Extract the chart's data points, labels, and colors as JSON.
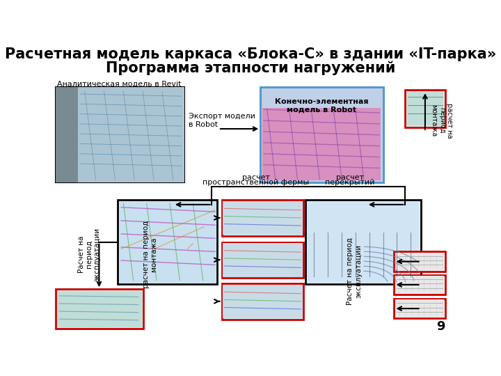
{
  "title_line1": "Расчетная модель каркаса «Блока-С» в здании «IT-парка»",
  "title_line2": "Программа этапности нагружений",
  "title_fontsize": 15,
  "background_color": "#ffffff",
  "label_analytical": "Аналитическая модель в Revit",
  "label_fem": "Конечно-элементная\nмодель в Robot",
  "label_export": "Экспорт модели\nв Robot",
  "label_calc_space1": "расчет",
  "label_calc_space2": "пространственной фермы",
  "label_calc_floor1": "расчет",
  "label_calc_floor2": "перекрытий",
  "label_calc_mount_right": "расчет на\nпериод\nмонтажа",
  "label_calc_exploit_left": "Расчет на\nпериод\nэксплуатации",
  "label_calc_mount_center": "расчет на период\nмонтажа",
  "label_calc_exploit_right": "Расчет на период\nэксплуатации",
  "page_number": "9",
  "arrow_color": "#000000",
  "box_border_red": "#cc0000",
  "box_border_black": "#000000"
}
